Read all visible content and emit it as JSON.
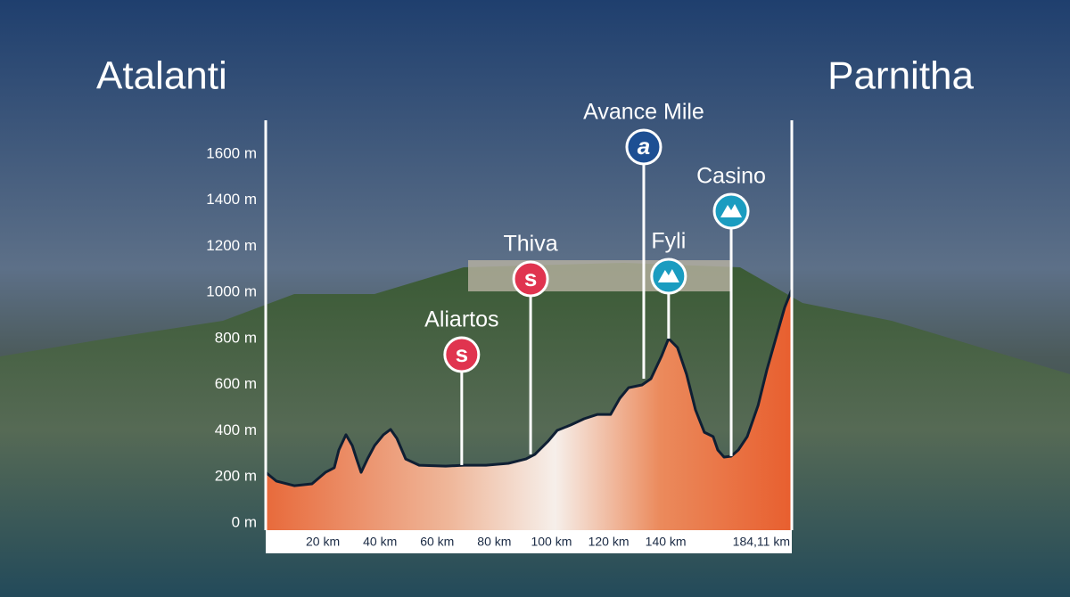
{
  "chart_data": {
    "type": "area",
    "start_label": "Atalanti",
    "finish_label": "Parnitha",
    "x": [
      0,
      3.7,
      10.0,
      16.2,
      20.9,
      24.0,
      25.6,
      28.1,
      30.3,
      31.8,
      33.4,
      35.6,
      38.1,
      41.2,
      43.7,
      45.9,
      49.0,
      53.7,
      63.0,
      69.3,
      77.1,
      84.9,
      91.1,
      94.2,
      98.9,
      102.0,
      106.7,
      111.4,
      116.1,
      120.7,
      123.9,
      127.0,
      131.7,
      134.8,
      138.5,
      141.0,
      144.1,
      147.3,
      150.4,
      153.5,
      156.6,
      158.2,
      160.4,
      162.9,
      165.4,
      168.5,
      172.3,
      175.4,
      178.5,
      181.6,
      184.11
    ],
    "series": [
      {
        "color": "#e8693a",
        "values": [
          220,
          182,
          162,
          170,
          220,
          240,
          317,
          383,
          336,
          278,
          220,
          278,
          336,
          383,
          406,
          367,
          278,
          251,
          247,
          251,
          251,
          259,
          278,
          298,
          356,
          402,
          425,
          452,
          471,
          471,
          541,
          587,
          599,
          626,
          723,
          800,
          761,
          645,
          491,
          394,
          375,
          317,
          286,
          290,
          317,
          375,
          510,
          665,
          800,
          935,
          1013
        ]
      }
    ],
    "xlim": [
      0,
      184.11
    ],
    "xticks": [
      {
        "value": 20,
        "label": "20 km"
      },
      {
        "value": 40,
        "label": "40 km"
      },
      {
        "value": 60,
        "label": "60 km"
      },
      {
        "value": 80,
        "label": "80 km"
      },
      {
        "value": 100,
        "label": "100 km"
      },
      {
        "value": 120,
        "label": "120 km"
      },
      {
        "value": 140,
        "label": "140 km"
      },
      {
        "value": 184.11,
        "label": "184,11 km"
      }
    ],
    "ylim": [
      0,
      1700
    ],
    "yticks": [
      {
        "value": 0,
        "label": "0 m"
      },
      {
        "value": 200,
        "label": "200 m"
      },
      {
        "value": 400,
        "label": "400 m"
      },
      {
        "value": 600,
        "label": "600 m"
      },
      {
        "value": 800,
        "label": "800 m"
      },
      {
        "value": 1000,
        "label": "1000 m"
      },
      {
        "value": 1200,
        "label": "1200 m"
      },
      {
        "value": 1400,
        "label": "1400 m"
      },
      {
        "value": 1600,
        "label": "1600 m"
      }
    ],
    "markers": [
      {
        "name": "Aliartos",
        "km": 68.6,
        "icon": "s",
        "color": "#e0344f"
      },
      {
        "name": "Thiva",
        "km": 92.7,
        "icon": "s",
        "color": "#e0344f"
      },
      {
        "name": "Avance Mile",
        "km": 132.3,
        "icon": "a",
        "color": "#1d4f93"
      },
      {
        "name": "Fyli",
        "km": 141.0,
        "icon": "mountain",
        "color": "#1a9cc0"
      },
      {
        "name": "Casino",
        "km": 162.9,
        "icon": "mountain",
        "color": "#1a9cc0"
      }
    ]
  }
}
